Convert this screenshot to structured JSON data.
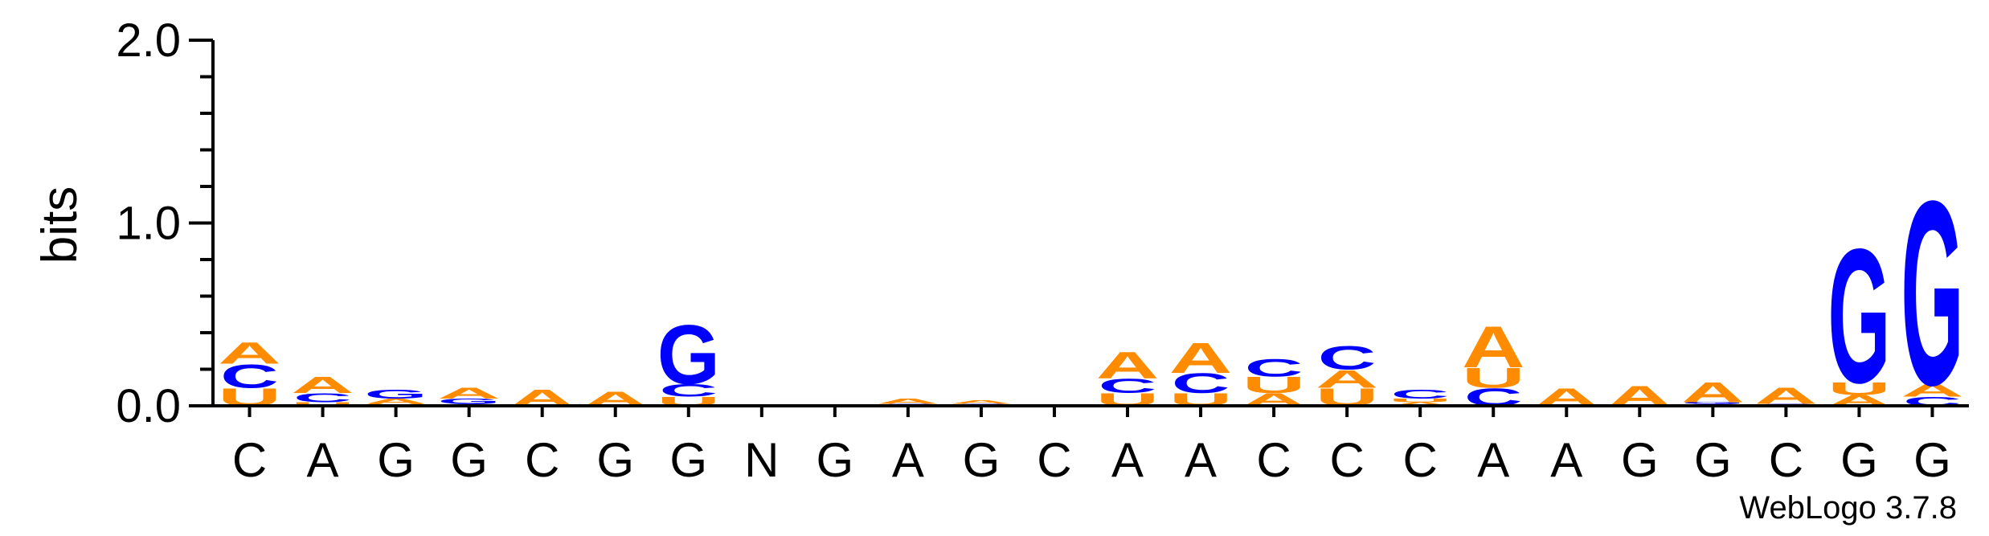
{
  "chart_data": {
    "type": "sequence-logo",
    "ylabel": "bits",
    "ylim": [
      0,
      2.0
    ],
    "yticks": [
      "0.0",
      "1.0",
      "2.0"
    ],
    "credit": "WebLogo 3.7.8",
    "colors": {
      "A": "#ff8c00",
      "U": "#ff8c00",
      "C": "#0000ff",
      "G": "#0000ff"
    },
    "positions": [
      {
        "label": "C",
        "stack": [
          {
            "letter": "U",
            "bits": 0.1
          },
          {
            "letter": "C",
            "bits": 0.13
          },
          {
            "letter": "A",
            "bits": 0.12
          }
        ]
      },
      {
        "label": "A",
        "stack": [
          {
            "letter": "U",
            "bits": 0.02
          },
          {
            "letter": "C",
            "bits": 0.05
          },
          {
            "letter": "A",
            "bits": 0.09
          }
        ]
      },
      {
        "label": "G",
        "stack": [
          {
            "letter": "U",
            "bits": 0.01
          },
          {
            "letter": "A",
            "bits": 0.03
          },
          {
            "letter": "G",
            "bits": 0.05
          }
        ]
      },
      {
        "label": "G",
        "stack": [
          {
            "letter": "C",
            "bits": 0.01
          },
          {
            "letter": "G",
            "bits": 0.03
          },
          {
            "letter": "A",
            "bits": 0.06
          }
        ]
      },
      {
        "label": "C",
        "stack": [
          {
            "letter": "A",
            "bits": 0.09
          }
        ]
      },
      {
        "label": "G",
        "stack": [
          {
            "letter": "A",
            "bits": 0.08
          }
        ]
      },
      {
        "label": "G",
        "stack": [
          {
            "letter": "U",
            "bits": 0.05
          },
          {
            "letter": "C",
            "bits": 0.07
          },
          {
            "letter": "G",
            "bits": 0.33
          }
        ]
      },
      {
        "label": "N",
        "stack": [
          {
            "letter": "A",
            "bits": 0.005
          }
        ]
      },
      {
        "label": "G",
        "stack": [
          {
            "letter": "A",
            "bits": 0.005
          }
        ]
      },
      {
        "label": "A",
        "stack": [
          {
            "letter": "C",
            "bits": 0.01
          },
          {
            "letter": "A",
            "bits": 0.03
          }
        ]
      },
      {
        "label": "G",
        "stack": [
          {
            "letter": "C",
            "bits": 0.01
          },
          {
            "letter": "A",
            "bits": 0.02
          }
        ]
      },
      {
        "label": "C",
        "stack": []
      },
      {
        "label": "A",
        "stack": [
          {
            "letter": "U",
            "bits": 0.07
          },
          {
            "letter": "C",
            "bits": 0.08
          },
          {
            "letter": "A",
            "bits": 0.15
          }
        ]
      },
      {
        "label": "A",
        "stack": [
          {
            "letter": "U",
            "bits": 0.07
          },
          {
            "letter": "C",
            "bits": 0.11
          },
          {
            "letter": "A",
            "bits": 0.17
          }
        ]
      },
      {
        "label": "C",
        "stack": [
          {
            "letter": "A",
            "bits": 0.07
          },
          {
            "letter": "U",
            "bits": 0.09
          },
          {
            "letter": "C",
            "bits": 0.1
          }
        ]
      },
      {
        "label": "C",
        "stack": [
          {
            "letter": "U",
            "bits": 0.1
          },
          {
            "letter": "A",
            "bits": 0.1
          },
          {
            "letter": "C",
            "bits": 0.13
          }
        ]
      },
      {
        "label": "C",
        "stack": [
          {
            "letter": "A",
            "bits": 0.02
          },
          {
            "letter": "U",
            "bits": 0.02
          },
          {
            "letter": "C",
            "bits": 0.05
          }
        ]
      },
      {
        "label": "A",
        "stack": [
          {
            "letter": "C",
            "bits": 0.1
          },
          {
            "letter": "U",
            "bits": 0.11
          },
          {
            "letter": "A",
            "bits": 0.23
          }
        ]
      },
      {
        "label": "A",
        "stack": [
          {
            "letter": "A",
            "bits": 0.1
          }
        ]
      },
      {
        "label": "G",
        "stack": [
          {
            "letter": "A",
            "bits": 0.11
          }
        ]
      },
      {
        "label": "G",
        "stack": [
          {
            "letter": "C",
            "bits": 0.01
          },
          {
            "letter": "G",
            "bits": 0.01
          },
          {
            "letter": "A",
            "bits": 0.11
          }
        ]
      },
      {
        "label": "C",
        "stack": [
          {
            "letter": "C",
            "bits": 0.01
          },
          {
            "letter": "A",
            "bits": 0.09
          }
        ]
      },
      {
        "label": "G",
        "stack": [
          {
            "letter": "A",
            "bits": 0.06
          },
          {
            "letter": "U",
            "bits": 0.07
          },
          {
            "letter": "G",
            "bits": 0.75
          }
        ]
      },
      {
        "label": "G",
        "stack": [
          {
            "letter": "C",
            "bits": 0.05
          },
          {
            "letter": "A",
            "bits": 0.07
          },
          {
            "letter": "G",
            "bits": 1.03
          }
        ]
      }
    ]
  }
}
